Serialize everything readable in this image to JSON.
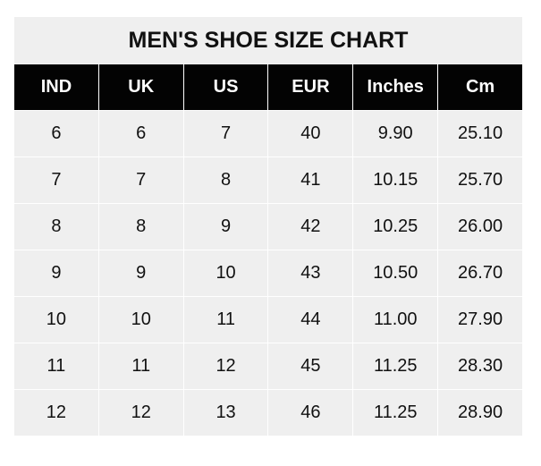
{
  "chart_data": {
    "type": "table",
    "title": "MEN'S SHOE SIZE CHART",
    "columns": [
      "IND",
      "UK",
      "US",
      "EUR",
      "Inches",
      "Cm"
    ],
    "rows": [
      [
        "6",
        "6",
        "7",
        "40",
        "9.90",
        "25.10"
      ],
      [
        "7",
        "7",
        "8",
        "41",
        "10.15",
        "25.70"
      ],
      [
        "8",
        "8",
        "9",
        "42",
        "10.25",
        "26.00"
      ],
      [
        "9",
        "9",
        "10",
        "43",
        "10.50",
        "26.70"
      ],
      [
        "10",
        "10",
        "11",
        "44",
        "11.00",
        "27.90"
      ],
      [
        "11",
        "11",
        "12",
        "45",
        "11.25",
        "28.30"
      ],
      [
        "12",
        "12",
        "13",
        "46",
        "11.25",
        "28.90"
      ]
    ],
    "colors": {
      "header_bg": "#030303",
      "header_text": "#ffffff",
      "cell_bg": "#efefef",
      "grid": "#ffffff"
    }
  }
}
